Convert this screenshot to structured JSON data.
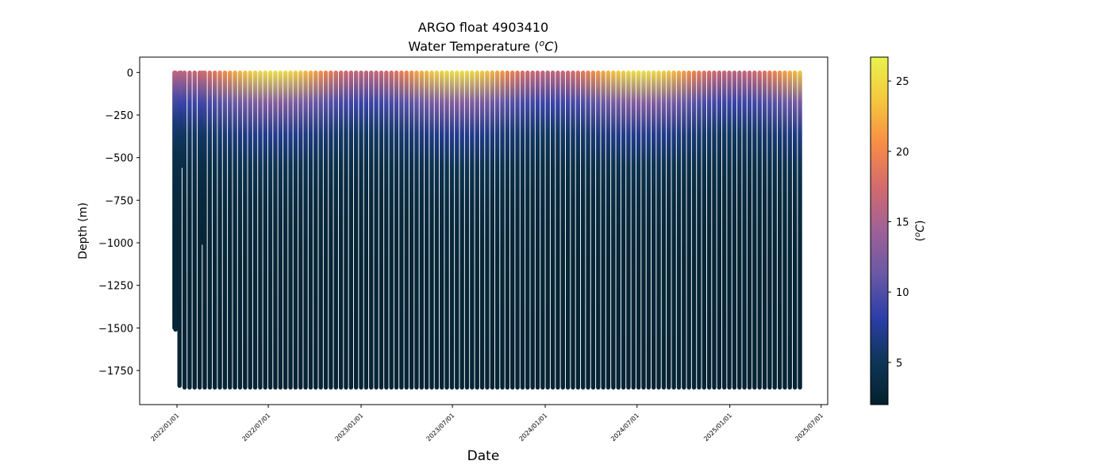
{
  "chart_data": {
    "type": "scatter",
    "title": "ARGO float 4903410",
    "subtitle_prefix": "Water Temperature (",
    "subtitle_unit_sup": "o",
    "subtitle_unit_main": "C",
    "subtitle_suffix": ")",
    "xlabel": "Date",
    "ylabel": "Depth (m)",
    "colorbar_label_prefix": "(",
    "colorbar_label_sup": "o",
    "colorbar_label_main": "C",
    "colorbar_label_suffix": ")",
    "xlim": [
      "2021-10-19",
      "2025-07-14"
    ],
    "ylim": [
      -1950,
      90
    ],
    "x_ticks": [
      "2022/01/01",
      "2022/07/01",
      "2023/01/01",
      "2023/07/01",
      "2024/01/01",
      "2024/07/01",
      "2025/01/01",
      "2025/07/01"
    ],
    "y_ticks": [
      0,
      -250,
      -500,
      -750,
      -1000,
      -1250,
      -1500,
      -1750
    ],
    "y_tick_labels": [
      "0",
      "−250",
      "−500",
      "−750",
      "−1000",
      "−1250",
      "−1500",
      "−1750"
    ],
    "colorbar_range": [
      2.0,
      26.7
    ],
    "colorbar_ticks": [
      5,
      10,
      15,
      20,
      25
    ],
    "colormap": "thermal",
    "colormap_stops": [
      "#04202d",
      "#0e3657",
      "#2c3ea8",
      "#6a58a5",
      "#9e6197",
      "#d36a6e",
      "#f78c45",
      "#f6c73e",
      "#e8f24d"
    ],
    "profiles": {
      "first_date": "2021-12-27",
      "last_date": "2025-05-28",
      "cycle_days": 10,
      "typical_bottom_depth": -1850,
      "special": [
        {
          "date": "2021-12-27",
          "bottom_depth": -1500
        },
        {
          "date": "2021-12-29",
          "bottom_depth": -1510
        },
        {
          "date": "2022-01-06",
          "bottom_depth": -1840
        },
        {
          "date": "2022-01-09",
          "bottom_depth": -550
        },
        {
          "date": "2022-02-20",
          "bottom_depth": -1000
        }
      ]
    }
  }
}
